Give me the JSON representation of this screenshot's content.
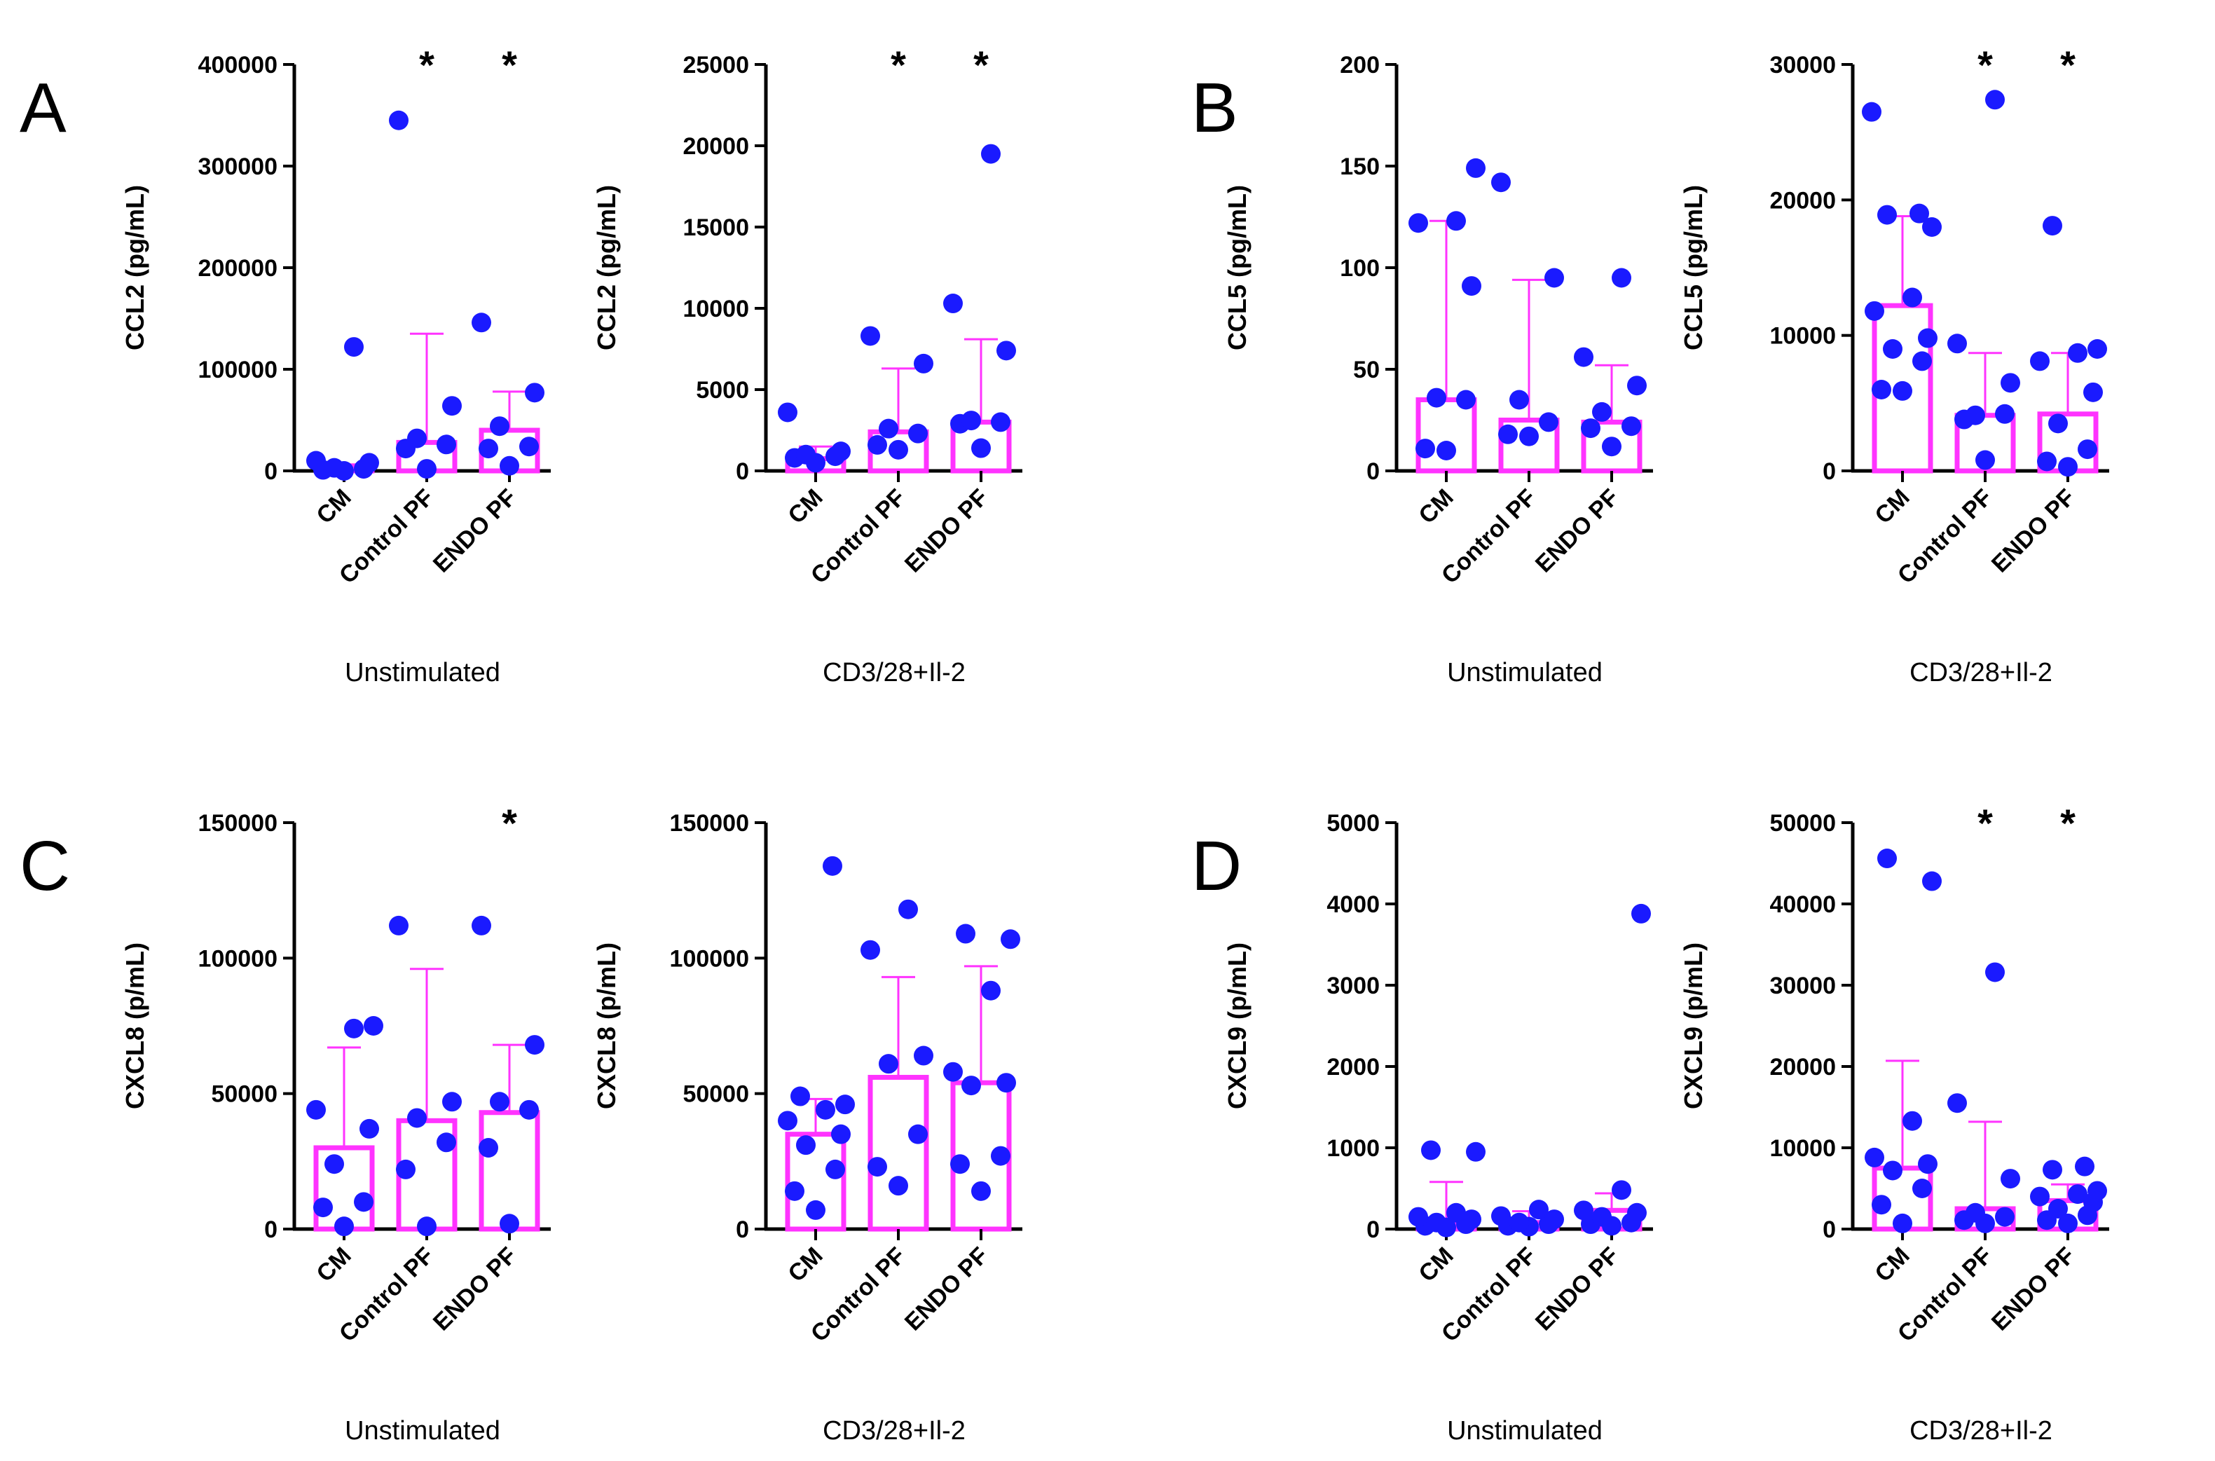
{
  "panels": [
    {
      "letter": "A"
    },
    {
      "letter": "B"
    },
    {
      "letter": "C"
    },
    {
      "letter": "D"
    }
  ],
  "colors": {
    "bar": "#ff33ff",
    "dot": "#1a1aff",
    "axis": "#000000"
  },
  "chart_data": [
    {
      "type": "bar",
      "panel": "A",
      "title": "",
      "xlabel": "Unstimulated",
      "ylabel": "CCL2 (pg/mL)",
      "ylim": [
        0,
        400000
      ],
      "yticks": [
        0,
        100000,
        200000,
        300000,
        400000
      ],
      "yticklabels": [
        "0",
        "100000",
        "200000",
        "300000",
        "400000"
      ],
      "categories": [
        "CM",
        "Control PF",
        "ENDO PF"
      ],
      "values": [
        5000,
        28000,
        40000
      ],
      "error_upper": [
        5000,
        135000,
        78000
      ],
      "points": [
        [
          0,
          1000,
          2000,
          3000,
          8000,
          10000,
          122000
        ],
        [
          2000,
          22000,
          26000,
          32000,
          64000,
          345000
        ],
        [
          5000,
          22000,
          24000,
          44000,
          77000,
          146000
        ]
      ],
      "significance": [
        "",
        "*",
        "*"
      ]
    },
    {
      "type": "bar",
      "panel": "A",
      "title": "",
      "xlabel": "CD3/28+Il-2",
      "ylabel": "CCL2 (pg/mL)",
      "ylim": [
        0,
        25000
      ],
      "yticks": [
        0,
        5000,
        10000,
        15000,
        20000,
        25000
      ],
      "yticklabels": [
        "0",
        "5000",
        "10000",
        "15000",
        "20000",
        "25000"
      ],
      "categories": [
        "CM",
        "Control PF",
        "ENDO PF"
      ],
      "values": [
        750,
        2400,
        3000
      ],
      "error_upper": [
        1500,
        6300,
        8100
      ],
      "points": [
        [
          500,
          800,
          900,
          1000,
          1200,
          3600
        ],
        [
          1300,
          1600,
          2300,
          2600,
          6600,
          8300
        ],
        [
          1400,
          2900,
          3000,
          3100,
          7400,
          10300,
          19500
        ]
      ],
      "significance": [
        "",
        "*",
        "*"
      ]
    },
    {
      "type": "bar",
      "panel": "B",
      "title": "",
      "xlabel": "Unstimulated",
      "ylabel": "CCL5 (pg/mL)",
      "ylim": [
        0,
        200
      ],
      "yticks": [
        0,
        50,
        100,
        150,
        200
      ],
      "yticklabels": [
        "0",
        "50",
        "100",
        "150",
        "200"
      ],
      "categories": [
        "CM",
        "Control PF",
        "ENDO PF"
      ],
      "values": [
        35,
        25,
        24
      ],
      "error_upper": [
        123,
        94,
        52
      ],
      "points": [
        [
          10,
          11,
          35,
          36,
          91,
          122,
          123,
          149
        ],
        [
          17,
          18,
          24,
          35,
          95,
          142
        ],
        [
          12,
          21,
          22,
          29,
          42,
          56,
          95
        ]
      ],
      "significance": [
        "",
        "",
        ""
      ]
    },
    {
      "type": "bar",
      "panel": "B",
      "title": "",
      "xlabel": "CD3/28+Il-2",
      "ylabel": "CCL5 (pg/mL)",
      "ylim": [
        0,
        30000
      ],
      "yticks": [
        0,
        10000,
        20000,
        30000
      ],
      "yticklabels": [
        "0",
        "10000",
        "20000",
        "30000"
      ],
      "categories": [
        "CM",
        "Control PF",
        "ENDO PF"
      ],
      "values": [
        12200,
        4100,
        4200
      ],
      "error_upper": [
        18800,
        8700,
        8700
      ],
      "points": [
        [
          5900,
          6000,
          8100,
          9000,
          9800,
          11800,
          12800,
          18000,
          18900,
          19000,
          26500
        ],
        [
          800,
          3800,
          4200,
          4100,
          6500,
          9400,
          27400
        ],
        [
          300,
          700,
          1600,
          3500,
          5800,
          8100,
          8700,
          9000,
          18100
        ]
      ],
      "significance": [
        "",
        "*",
        "*"
      ]
    },
    {
      "type": "bar",
      "panel": "C",
      "title": "",
      "xlabel": "Unstimulated",
      "ylabel": "CXCL8 (p/mL)",
      "ylim": [
        0,
        150000
      ],
      "yticks": [
        0,
        50000,
        100000,
        150000
      ],
      "yticklabels": [
        "0",
        "50000",
        "100000",
        "150000"
      ],
      "categories": [
        "CM",
        "Control PF",
        "ENDO PF"
      ],
      "values": [
        30000,
        40000,
        43000
      ],
      "error_upper": [
        67000,
        96000,
        68000
      ],
      "points": [
        [
          1000,
          8000,
          10000,
          24000,
          37000,
          44000,
          74000,
          75000
        ],
        [
          1000,
          22000,
          32000,
          41000,
          47000,
          112000
        ],
        [
          2000,
          30000,
          44000,
          47000,
          68000,
          112000
        ]
      ],
      "significance": [
        "",
        "",
        "*"
      ]
    },
    {
      "type": "bar",
      "panel": "C",
      "title": "",
      "xlabel": "CD3/28+Il-2",
      "ylabel": "CXCL8 (p/mL)",
      "ylim": [
        0,
        150000
      ],
      "yticks": [
        0,
        50000,
        100000,
        150000
      ],
      "yticklabels": [
        "0",
        "50000",
        "100000",
        "150000"
      ],
      "categories": [
        "CM",
        "Control PF",
        "ENDO PF"
      ],
      "values": [
        35000,
        56000,
        54000
      ],
      "error_upper": [
        48000,
        93000,
        97000
      ],
      "points": [
        [
          7000,
          14000,
          22000,
          31000,
          35000,
          40000,
          44000,
          46000,
          49000,
          134000
        ],
        [
          16000,
          23000,
          35000,
          61000,
          64000,
          103000,
          118000
        ],
        [
          14000,
          24000,
          27000,
          53000,
          54000,
          58000,
          88000,
          107000,
          109000
        ]
      ],
      "significance": [
        "",
        "",
        ""
      ]
    },
    {
      "type": "bar",
      "panel": "D",
      "title": "",
      "xlabel": "Unstimulated",
      "ylabel": "CXCL9 (p/mL)",
      "ylim": [
        0,
        5000
      ],
      "yticks": [
        0,
        1000,
        2000,
        3000,
        4000,
        5000
      ],
      "yticklabels": [
        "0",
        "1000",
        "2000",
        "3000",
        "4000",
        "5000"
      ],
      "categories": [
        "CM",
        "Control PF",
        "ENDO PF"
      ],
      "values": [
        60,
        80,
        230
      ],
      "error_upper": [
        580,
        220,
        440
      ],
      "points": [
        [
          20,
          40,
          60,
          80,
          120,
          150,
          200,
          950,
          970
        ],
        [
          30,
          40,
          60,
          80,
          120,
          160,
          240
        ],
        [
          40,
          60,
          80,
          150,
          200,
          230,
          480,
          3880
        ]
      ],
      "significance": [
        "",
        "",
        ""
      ]
    },
    {
      "type": "bar",
      "panel": "D",
      "title": "",
      "xlabel": "CD3/28+Il-2",
      "ylabel": "CXCL9 (p/mL)",
      "ylim": [
        0,
        50000
      ],
      "yticks": [
        0,
        10000,
        20000,
        30000,
        40000,
        50000
      ],
      "yticklabels": [
        "0",
        "10000",
        "20000",
        "30000",
        "40000",
        "50000"
      ],
      "categories": [
        "CM",
        "Control PF",
        "ENDO PF"
      ],
      "values": [
        7500,
        2500,
        3500
      ],
      "error_upper": [
        20700,
        13200,
        5500
      ],
      "points": [
        [
          700,
          3000,
          5000,
          7200,
          8000,
          8800,
          13300,
          42800,
          45600
        ],
        [
          700,
          1100,
          1500,
          2000,
          6200,
          15500,
          31600
        ],
        [
          700,
          1100,
          1700,
          2500,
          3300,
          4000,
          4300,
          4700,
          7300,
          7700
        ]
      ],
      "significance": [
        "",
        "*",
        "*"
      ]
    }
  ]
}
